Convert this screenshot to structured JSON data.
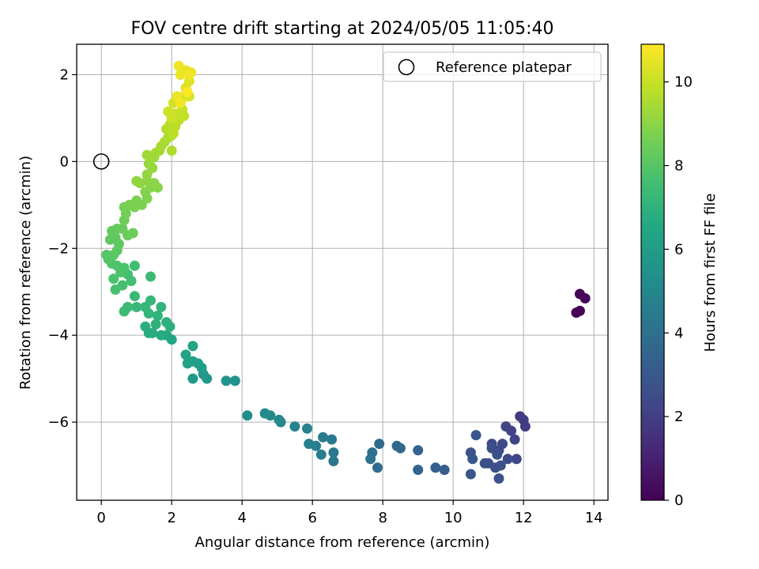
{
  "chart_data": {
    "type": "scatter",
    "title": "FOV centre drift starting at 2024/05/05 11:05:40",
    "xlabel": "Angular distance from reference (arcmin)",
    "ylabel": "Rotation from reference (arcmin)",
    "xlim": [
      -0.7,
      14.4
    ],
    "ylim": [
      -7.8,
      2.7
    ],
    "xticks": [
      0,
      2,
      4,
      6,
      8,
      10,
      12,
      14
    ],
    "yticks": [
      2,
      0,
      -2,
      -4,
      -6
    ],
    "grid": true,
    "legend": {
      "position": "top-right",
      "entries": [
        "Reference platepar"
      ]
    },
    "reference_point": {
      "x": 0,
      "y": 0
    },
    "colorbar": {
      "label": "Hours from first FF file",
      "colormap": "viridis",
      "range": [
        0,
        10.9
      ],
      "ticks": [
        0,
        2,
        4,
        6,
        8,
        10
      ]
    },
    "series": [
      {
        "points": [
          [
            13.5,
            -3.48,
            0.0
          ],
          [
            13.6,
            -3.44,
            0.05
          ],
          [
            13.6,
            -3.05,
            0.1
          ],
          [
            13.75,
            -3.15,
            0.15
          ],
          [
            12.05,
            -6.1,
            2.0
          ],
          [
            11.9,
            -5.87,
            1.9
          ],
          [
            12.0,
            -5.95,
            1.95
          ],
          [
            11.65,
            -6.2,
            2.1
          ],
          [
            11.75,
            -6.4,
            2.15
          ],
          [
            11.5,
            -6.1,
            2.2
          ],
          [
            11.8,
            -6.85,
            2.3
          ],
          [
            11.4,
            -6.5,
            2.35
          ],
          [
            11.1,
            -6.5,
            2.4
          ],
          [
            11.3,
            -6.65,
            2.45
          ],
          [
            11.55,
            -6.85,
            2.5
          ],
          [
            11.2,
            -7.05,
            2.55
          ],
          [
            11.0,
            -6.95,
            2.6
          ],
          [
            10.9,
            -6.95,
            2.65
          ],
          [
            11.3,
            -7.3,
            2.7
          ],
          [
            11.35,
            -7.0,
            2.75
          ],
          [
            10.5,
            -6.7,
            2.8
          ],
          [
            10.65,
            -6.3,
            2.85
          ],
          [
            10.55,
            -6.85,
            2.9
          ],
          [
            10.5,
            -7.2,
            2.95
          ],
          [
            11.1,
            -6.6,
            2.6
          ],
          [
            11.25,
            -6.75,
            2.7
          ],
          [
            9.75,
            -7.1,
            3.2
          ],
          [
            9.5,
            -7.05,
            3.3
          ],
          [
            9.0,
            -6.65,
            3.4
          ],
          [
            9.0,
            -7.1,
            3.5
          ],
          [
            8.5,
            -6.6,
            3.6
          ],
          [
            8.4,
            -6.55,
            3.7
          ],
          [
            7.9,
            -6.5,
            3.8
          ],
          [
            7.85,
            -7.05,
            3.9
          ],
          [
            7.7,
            -6.7,
            4.0
          ],
          [
            7.65,
            -6.85,
            4.1
          ],
          [
            6.6,
            -6.9,
            4.3
          ],
          [
            6.6,
            -6.7,
            4.35
          ],
          [
            6.55,
            -6.4,
            4.4
          ],
          [
            6.3,
            -6.35,
            4.5
          ],
          [
            6.25,
            -6.75,
            4.55
          ],
          [
            6.1,
            -6.55,
            4.6
          ],
          [
            5.9,
            -6.5,
            4.7
          ],
          [
            5.85,
            -6.15,
            4.8
          ],
          [
            5.5,
            -6.1,
            4.9
          ],
          [
            5.1,
            -6.0,
            5.0
          ],
          [
            5.05,
            -5.95,
            5.05
          ],
          [
            4.8,
            -5.85,
            5.1
          ],
          [
            4.65,
            -5.8,
            5.2
          ],
          [
            4.15,
            -5.85,
            5.3
          ],
          [
            3.8,
            -5.05,
            5.5
          ],
          [
            3.55,
            -5.05,
            5.6
          ],
          [
            3.0,
            -5.0,
            5.75
          ],
          [
            2.9,
            -4.9,
            5.8
          ],
          [
            2.6,
            -5.0,
            5.9
          ],
          [
            2.85,
            -4.75,
            6.0
          ],
          [
            2.75,
            -4.65,
            6.1
          ],
          [
            2.6,
            -4.6,
            6.2
          ],
          [
            2.45,
            -4.65,
            6.25
          ],
          [
            2.4,
            -4.45,
            6.3
          ],
          [
            2.6,
            -4.25,
            6.35
          ],
          [
            2.0,
            -4.1,
            6.5
          ],
          [
            1.85,
            -4.0,
            6.6
          ],
          [
            1.7,
            -4.0,
            6.65
          ],
          [
            1.45,
            -3.95,
            6.7
          ],
          [
            1.35,
            -3.95,
            6.75
          ],
          [
            1.25,
            -3.8,
            6.8
          ],
          [
            1.95,
            -3.8,
            6.85
          ],
          [
            1.85,
            -3.7,
            6.9
          ],
          [
            1.55,
            -3.75,
            6.95
          ],
          [
            1.6,
            -3.55,
            7.0
          ],
          [
            1.7,
            -3.35,
            7.05
          ],
          [
            1.35,
            -3.5,
            7.1
          ],
          [
            1.25,
            -3.35,
            7.15
          ],
          [
            1.4,
            -3.2,
            7.2
          ],
          [
            1.0,
            -3.35,
            7.25
          ],
          [
            0.95,
            -3.1,
            7.3
          ],
          [
            0.75,
            -3.35,
            7.35
          ],
          [
            0.65,
            -3.45,
            7.4
          ],
          [
            1.4,
            -2.65,
            7.45
          ],
          [
            0.95,
            -2.4,
            7.5
          ],
          [
            0.85,
            -2.75,
            7.55
          ],
          [
            0.75,
            -2.6,
            7.6
          ],
          [
            0.6,
            -2.85,
            7.65
          ],
          [
            0.4,
            -2.95,
            7.7
          ],
          [
            0.35,
            -2.7,
            7.75
          ],
          [
            0.65,
            -2.45,
            7.8
          ],
          [
            0.55,
            -2.55,
            7.8
          ],
          [
            0.45,
            -2.4,
            7.85
          ],
          [
            0.3,
            -2.35,
            7.9
          ],
          [
            0.2,
            -2.25,
            7.95
          ],
          [
            0.15,
            -2.15,
            8.0
          ],
          [
            0.35,
            -2.15,
            8.05
          ],
          [
            0.45,
            -2.05,
            8.1
          ],
          [
            0.5,
            -1.9,
            8.15
          ],
          [
            0.4,
            -1.75,
            8.2
          ],
          [
            0.25,
            -1.8,
            8.2
          ],
          [
            0.3,
            -1.6,
            8.25
          ],
          [
            0.45,
            -1.55,
            8.3
          ],
          [
            0.6,
            -1.55,
            8.35
          ],
          [
            0.75,
            -1.7,
            8.4
          ],
          [
            0.9,
            -1.65,
            8.45
          ],
          [
            0.65,
            -1.35,
            8.5
          ],
          [
            0.7,
            -1.2,
            8.55
          ],
          [
            0.65,
            -1.05,
            8.6
          ],
          [
            0.8,
            -1.0,
            8.65
          ],
          [
            0.95,
            -1.05,
            8.7
          ],
          [
            1.0,
            -0.9,
            8.75
          ],
          [
            1.15,
            -1.0,
            8.75
          ],
          [
            1.3,
            -0.85,
            8.8
          ],
          [
            1.25,
            -0.7,
            8.85
          ],
          [
            1.4,
            -0.6,
            8.9
          ],
          [
            1.6,
            -0.6,
            8.95
          ],
          [
            1.5,
            -0.5,
            9.0
          ],
          [
            1.3,
            -0.45,
            9.0
          ],
          [
            1.1,
            -0.5,
            9.05
          ],
          [
            1.0,
            -0.45,
            9.1
          ],
          [
            1.3,
            -0.3,
            9.1
          ],
          [
            1.45,
            -0.15,
            9.15
          ],
          [
            1.35,
            -0.05,
            9.2
          ],
          [
            1.4,
            0.05,
            9.25
          ],
          [
            1.5,
            0.1,
            9.3
          ],
          [
            1.3,
            0.15,
            9.35
          ],
          [
            1.55,
            0.2,
            9.35
          ],
          [
            1.65,
            0.25,
            9.4
          ],
          [
            1.7,
            0.35,
            9.45
          ],
          [
            1.8,
            0.45,
            9.5
          ],
          [
            1.9,
            0.55,
            9.55
          ],
          [
            2.0,
            0.6,
            9.6
          ],
          [
            1.85,
            0.75,
            9.65
          ],
          [
            1.95,
            0.85,
            9.7
          ],
          [
            2.1,
            0.8,
            9.75
          ],
          [
            2.05,
            0.65,
            9.8
          ],
          [
            2.2,
            0.95,
            9.85
          ],
          [
            2.35,
            1.05,
            9.9
          ],
          [
            2.3,
            1.2,
            9.95
          ],
          [
            2.1,
            1.1,
            10.0
          ],
          [
            2.0,
            1.0,
            10.05
          ],
          [
            1.9,
            1.15,
            10.1
          ],
          [
            2.05,
            1.35,
            10.15
          ],
          [
            2.3,
            1.45,
            10.2
          ],
          [
            2.4,
            1.55,
            10.25
          ],
          [
            2.5,
            1.5,
            10.3
          ],
          [
            2.4,
            1.7,
            10.35
          ],
          [
            2.5,
            1.85,
            10.4
          ],
          [
            2.55,
            2.05,
            10.5
          ],
          [
            2.4,
            2.1,
            10.55
          ],
          [
            2.25,
            2.0,
            10.6
          ],
          [
            2.2,
            2.2,
            10.65
          ],
          [
            2.5,
            2.0,
            10.7
          ],
          [
            2.0,
            0.25,
            9.6
          ],
          [
            2.15,
            1.5,
            10.6
          ],
          [
            2.25,
            1.35,
            10.75
          ],
          [
            2.45,
            1.6,
            10.85
          ]
        ]
      }
    ]
  }
}
